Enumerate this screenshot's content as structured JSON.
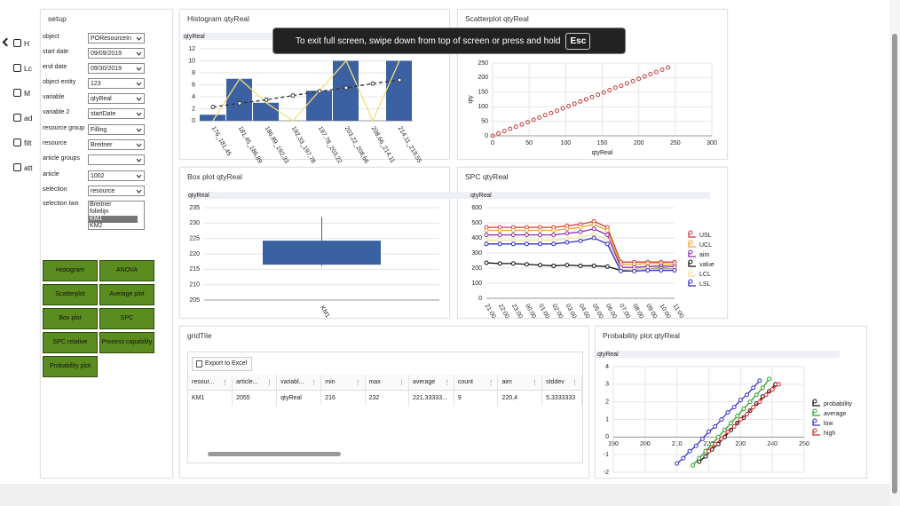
{
  "nav": [
    "H",
    "Lc",
    "M",
    "ad",
    "filt",
    "att"
  ],
  "setup": {
    "title": "setup",
    "fields": [
      {
        "label": "object",
        "value": "POResourceIn"
      },
      {
        "label": "start date",
        "value": "09/09/2019"
      },
      {
        "label": "end date",
        "value": "09/30/2019"
      },
      {
        "label": "object entity",
        "value": "123"
      },
      {
        "label": "variable",
        "value": "qtyReal"
      },
      {
        "label": "variable 2",
        "value": "startDate"
      },
      {
        "label": "resource group",
        "value": "Filling"
      },
      {
        "label": "resource",
        "value": "Breitner"
      },
      {
        "label": "article groups"
      },
      {
        "label": "article",
        "value": "1002"
      },
      {
        "label": "selection",
        "value": "resource"
      }
    ],
    "selection_two": {
      "label": "selection two",
      "options": [
        "Breitner",
        "folielijn",
        "KM1",
        "KM2"
      ]
    }
  },
  "buttons": [
    "Histogram",
    "ANOVA",
    "Scatterplot",
    "Average plot",
    "Box plot",
    "SPC",
    "SPC relative",
    "Process capability",
    "Probability plot"
  ],
  "toast": {
    "text": "To exit full screen, swipe down from top of screen or press and hold",
    "key": "Esc"
  },
  "grid": {
    "title": "gridTile",
    "export": "Export to Excel",
    "columns": [
      "resour...",
      "article...",
      "variabl...",
      "min",
      "max",
      "average",
      "count",
      "aim",
      "stddev"
    ],
    "rows": [
      [
        "KM1",
        "2055",
        "qtyReal",
        "216",
        "232",
        "221,33333...",
        "9",
        "220,4",
        "5,3333333"
      ]
    ]
  },
  "chart_data": [
    {
      "type": "bar",
      "title": "Histogram qtyReal",
      "ylabel": "qtyReal",
      "categories": [
        "176_181,45",
        "181,45_186,89",
        "186,89_192,33",
        "192,33_197,78",
        "197,78_203,22",
        "203,22_208,66",
        "208,66_214,11",
        "214,11_219,55"
      ],
      "values": [
        1,
        7,
        3,
        0,
        5,
        10,
        0,
        10
      ],
      "color": "#3c61a2",
      "series": [
        {
          "color": "#f2e07a",
          "values": [
            0,
            7,
            3,
            0,
            5,
            10,
            0,
            10
          ]
        },
        {
          "color": "#333333",
          "dashed": true,
          "markers": true,
          "values": [
            2.3,
            2.9,
            3.5,
            4.2,
            4.9,
            5.5,
            6.2,
            6.8
          ]
        }
      ],
      "ylim": [
        0,
        12
      ],
      "yticks": [
        0,
        2,
        4,
        6,
        8,
        10,
        12
      ],
      "grid": true
    },
    {
      "type": "scatter",
      "title": "Scatterplot qtyReal",
      "xlabel": "qtyReal",
      "ylabel": "qty",
      "color": "#c43b3b",
      "x": [
        0,
        8,
        16,
        24,
        32,
        40,
        48,
        56,
        64,
        72,
        80,
        88,
        96,
        104,
        112,
        120,
        128,
        136,
        144,
        152,
        160,
        168,
        176,
        184,
        192,
        200,
        208,
        216,
        224,
        232,
        240
      ],
      "values": [
        0,
        8,
        16,
        24,
        31,
        39,
        47,
        55,
        63,
        71,
        78,
        86,
        94,
        102,
        110,
        118,
        125,
        133,
        141,
        149,
        157,
        165,
        172,
        180,
        188,
        196,
        204,
        212,
        219,
        227,
        235
      ],
      "xlim": [
        0,
        300
      ],
      "xticks": [
        0,
        50,
        100,
        150,
        200,
        250,
        300
      ],
      "ylim": [
        0,
        250
      ],
      "yticks": [
        0,
        50,
        100,
        150,
        200,
        250
      ],
      "grid": true
    },
    {
      "type": "box",
      "title": "Box plot qtyReal",
      "ylabel": "qtyReal",
      "categories": [
        "KM1"
      ],
      "color": "#3c61a2",
      "min": [
        216
      ],
      "q1": [
        216.5
      ],
      "q3": [
        224.3
      ],
      "max": [
        232
      ],
      "ylim": [
        205,
        235
      ],
      "yticks": [
        205,
        210,
        215,
        220,
        225,
        230,
        235
      ],
      "grid": true
    },
    {
      "type": "line",
      "title": "SPC qtyReal",
      "ylabel": "qtyReal",
      "legend": "right",
      "markers": true,
      "categories": [
        "21:00",
        "22:00",
        "23:00",
        "00:00",
        "01:00",
        "02:00",
        "03:00",
        "04:00",
        "05:00",
        "06:00",
        "07:00",
        "08:00",
        "09:00",
        "10:00",
        "11:00"
      ],
      "series": [
        {
          "name": "USL",
          "color": "#d43a3a",
          "values": [
            470,
            470,
            470,
            470,
            470,
            470,
            480,
            490,
            510,
            470,
            240,
            240,
            240,
            240,
            240
          ]
        },
        {
          "name": "UCL",
          "color": "#f0a030",
          "values": [
            450,
            450,
            450,
            450,
            450,
            450,
            460,
            470,
            490,
            450,
            225,
            225,
            230,
            230,
            225
          ]
        },
        {
          "name": "aim",
          "color": "#8a2bb0",
          "values": [
            420,
            420,
            420,
            420,
            420,
            420,
            430,
            440,
            460,
            420,
            205,
            205,
            210,
            215,
            210
          ]
        },
        {
          "name": "value",
          "color": "#111111",
          "values": [
            235,
            230,
            230,
            225,
            220,
            215,
            220,
            215,
            215,
            210,
            185,
            190,
            195,
            200,
            195
          ]
        },
        {
          "name": "LCL",
          "color": "#eee0a0",
          "values": [
            385,
            385,
            385,
            385,
            385,
            385,
            395,
            405,
            425,
            385,
            190,
            190,
            195,
            195,
            195
          ]
        },
        {
          "name": "LSL",
          "color": "#2f2fd0",
          "values": [
            360,
            360,
            360,
            360,
            360,
            360,
            370,
            380,
            400,
            360,
            180,
            180,
            185,
            185,
            185
          ]
        }
      ],
      "ylim": [
        0,
        600
      ],
      "yticks": [
        0,
        100,
        200,
        300,
        400,
        500,
        600
      ],
      "grid": true
    },
    {
      "type": "line",
      "title": "Probability plot qtyReal",
      "ylabel": "qtyReal",
      "legend": "right",
      "markers": true,
      "series": [
        {
          "name": "probability",
          "color": "#111111",
          "x": [
            217,
            219,
            221,
            223,
            225,
            227,
            229,
            231,
            233,
            235,
            237,
            239,
            241
          ],
          "values": [
            -1.4,
            -1.1,
            -0.7,
            -0.4,
            0,
            0.4,
            0.8,
            1.1,
            1.5,
            1.9,
            2.3,
            2.6,
            3
          ]
        },
        {
          "name": "average",
          "color": "#2ca02c",
          "x": [
            215,
            217,
            219,
            221,
            223,
            225,
            227,
            229,
            231,
            233,
            235,
            237,
            239
          ],
          "values": [
            -1.6,
            -1.2,
            -0.8,
            -0.4,
            0,
            0.4,
            0.8,
            1.2,
            1.6,
            2,
            2.4,
            2.8,
            3.3
          ]
        },
        {
          "name": "low",
          "color": "#3333cc",
          "x": [
            210,
            212,
            214,
            216,
            218,
            220,
            222,
            224,
            226,
            228,
            230,
            232,
            234,
            236
          ],
          "values": [
            -1.5,
            -1.2,
            -0.8,
            -0.5,
            -0.1,
            0.3,
            0.6,
            1,
            1.4,
            1.7,
            2.1,
            2.4,
            2.8,
            3.2
          ]
        },
        {
          "name": "high",
          "color": "#d62728",
          "x": [
            220,
            222,
            224,
            226,
            228,
            230,
            232,
            234,
            236,
            238,
            240,
            242
          ],
          "values": [
            -0.8,
            -0.4,
            -0.1,
            0.3,
            0.6,
            1,
            1.3,
            1.7,
            2,
            2.4,
            2.7,
            3
          ]
        }
      ],
      "xlim": [
        190,
        250
      ],
      "xticks": [
        190,
        200,
        210,
        220,
        230,
        240,
        250
      ],
      "ylim": [
        -2,
        4
      ],
      "yticks": [
        -2,
        -1,
        0,
        1,
        2,
        3,
        4
      ],
      "grid": true
    }
  ]
}
